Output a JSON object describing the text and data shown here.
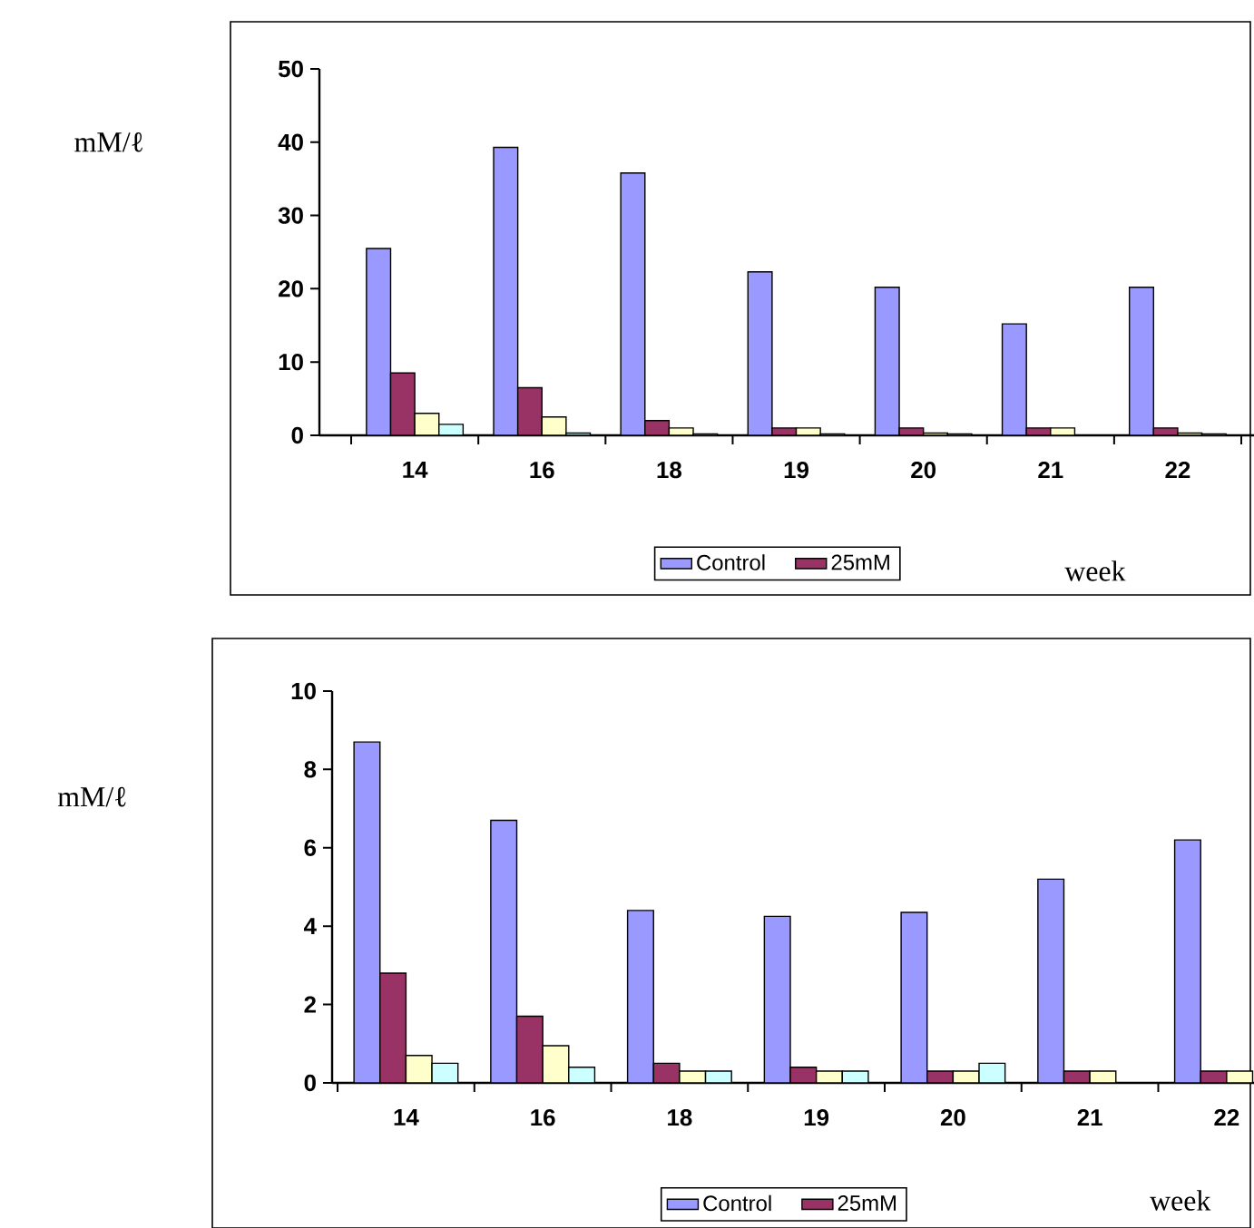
{
  "chart_data": [
    {
      "type": "bar",
      "ylabel": "mM/ℓ",
      "xlabel": "week",
      "categories": [
        "14",
        "16",
        "18",
        "19",
        "20",
        "21",
        "22"
      ],
      "series": [
        {
          "name": "Control",
          "color": "#9999ff",
          "values": [
            25.5,
            39.3,
            35.8,
            22.3,
            20.2,
            15.2,
            20.2
          ]
        },
        {
          "name": "25mM",
          "color": "#993366",
          "values": [
            8.5,
            6.5,
            2,
            1,
            1,
            1,
            1
          ]
        },
        {
          "color": "#ffffcc",
          "values": [
            3,
            2.5,
            1,
            1,
            0.3,
            1,
            0.3
          ]
        },
        {
          "color": "#ccffff",
          "values": [
            1.5,
            0.3,
            0.2,
            0.2,
            0.2,
            null,
            0.2
          ]
        }
      ],
      "ylim": [
        0,
        50
      ],
      "yticks": [
        0,
        10,
        20,
        30,
        40,
        50
      ],
      "grid": false,
      "legend": "bottom"
    },
    {
      "type": "bar",
      "ylabel": "mM/ℓ",
      "xlabel": "week",
      "categories": [
        "14",
        "16",
        "18",
        "19",
        "20",
        "21",
        "22"
      ],
      "series": [
        {
          "name": "Control",
          "color": "#9999ff",
          "values": [
            8.7,
            6.7,
            4.4,
            4.25,
            4.35,
            5.2,
            6.2
          ]
        },
        {
          "name": "25mM",
          "color": "#993366",
          "values": [
            2.8,
            1.7,
            0.5,
            0.4,
            0.3,
            0.3,
            0.3
          ]
        },
        {
          "color": "#ffffcc",
          "values": [
            0.7,
            0.95,
            0.3,
            0.3,
            0.3,
            0.3,
            0.3
          ]
        },
        {
          "color": "#ccffff",
          "values": [
            0.5,
            0.4,
            0.3,
            0.3,
            0.5,
            null,
            null
          ]
        }
      ],
      "ylim": [
        0,
        10
      ],
      "yticks": [
        0,
        2,
        4,
        6,
        8,
        10
      ],
      "grid": false,
      "legend": "bottom"
    }
  ]
}
